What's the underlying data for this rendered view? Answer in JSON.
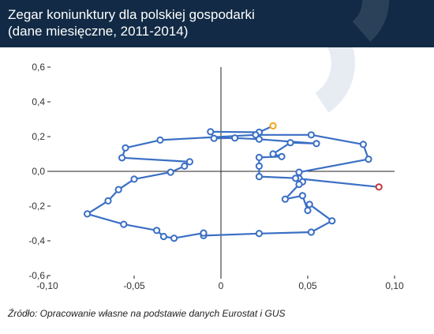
{
  "header": {
    "title": "Zegar koniunktury dla polskiej gospodarki\n(dane miesięczne, 2011-2014)"
  },
  "source": "Źródło: Opracowanie własne na podstawie danych Eurostat i GUS",
  "colors": {
    "header_bg": "#122a45",
    "line": "#3a6fc4",
    "start_marker": "#f2a21b",
    "end_marker": "#c0393b",
    "watermark": "#e7ebf2"
  },
  "chart_data": {
    "type": "line",
    "title": "Zegar koniunktury dla polskiej gospodarki (dane miesięczne, 2011-2014)",
    "xlabel": "",
    "ylabel": "",
    "xlim": [
      -0.1,
      0.1
    ],
    "ylim": [
      -0.6,
      0.6
    ],
    "grid": false,
    "x_ticks": [
      "-0,10",
      "-0,05",
      "0",
      "0,05",
      "0,10"
    ],
    "y_ticks": [
      "0,6",
      "0,4",
      "0,2",
      "0,0",
      "-0,2",
      "-0,4",
      "-0,6"
    ],
    "x_tick_values": [
      -0.1,
      -0.05,
      0,
      0.05,
      0.1
    ],
    "y_tick_values": [
      0.6,
      0.4,
      0.2,
      0.0,
      -0.2,
      -0.4,
      -0.6
    ],
    "series": [
      {
        "points": [
          [
            0.03,
            0.262
          ],
          [
            0.022,
            0.225
          ],
          [
            -0.006,
            0.228
          ],
          [
            -0.004,
            0.19
          ],
          [
            0.008,
            0.192
          ],
          [
            0.022,
            0.185
          ],
          [
            0.055,
            0.16
          ],
          [
            0.04,
            0.165
          ],
          [
            0.03,
            0.1
          ],
          [
            0.035,
            0.085
          ],
          [
            0.022,
            0.08
          ],
          [
            0.022,
            0.03
          ],
          [
            0.022,
            -0.03
          ],
          [
            0.045,
            -0.04
          ],
          [
            0.047,
            -0.06
          ],
          [
            0.045,
            -0.075
          ],
          [
            0.037,
            -0.16
          ],
          [
            0.047,
            -0.14
          ],
          [
            0.05,
            -0.225
          ],
          [
            0.051,
            -0.19
          ],
          [
            0.064,
            -0.285
          ],
          [
            0.052,
            -0.35
          ],
          [
            0.022,
            -0.358
          ],
          [
            -0.01,
            -0.37
          ],
          [
            -0.01,
            -0.355
          ],
          [
            -0.027,
            -0.385
          ],
          [
            -0.033,
            -0.375
          ],
          [
            -0.037,
            -0.34
          ],
          [
            -0.056,
            -0.305
          ],
          [
            -0.077,
            -0.245
          ],
          [
            -0.065,
            -0.17
          ],
          [
            -0.059,
            -0.105
          ],
          [
            -0.05,
            -0.045
          ],
          [
            -0.029,
            -0.005
          ],
          [
            -0.021,
            0.03
          ],
          [
            -0.018,
            0.055
          ],
          [
            -0.057,
            0.078
          ],
          [
            -0.055,
            0.135
          ],
          [
            -0.035,
            0.18
          ],
          [
            0.02,
            0.21
          ],
          [
            0.052,
            0.21
          ],
          [
            0.082,
            0.155
          ],
          [
            0.085,
            0.07
          ],
          [
            0.045,
            -0.005
          ],
          [
            0.043,
            -0.04
          ],
          [
            0.091,
            -0.09
          ]
        ]
      }
    ]
  }
}
